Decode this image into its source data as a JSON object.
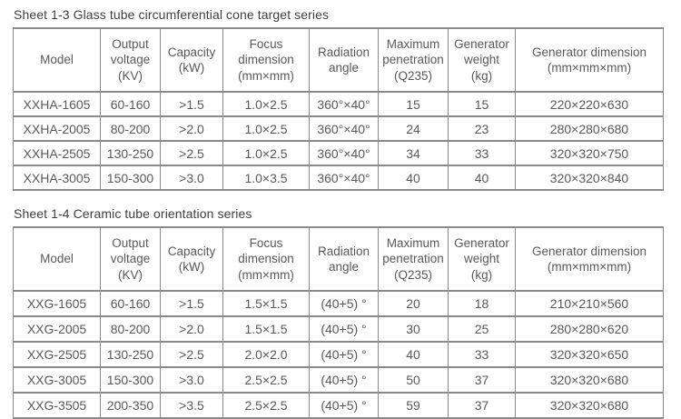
{
  "page": {
    "background": "#ffffff",
    "text_color": "#595959",
    "title_color": "#3f3f3f",
    "border_color": "#8a8a8a"
  },
  "tables": [
    {
      "title": "Sheet 1-3 Glass tube circumferential cone target series",
      "headers": [
        "Model",
        "Output\nvoltage\n(KV)",
        "Capacity\n(kW)",
        "Focus\ndimension\n(mm×mm)",
        "Radiation\nangle",
        "Maximum\npenetration\n(Q235)",
        "Generator\nweight\n(kg)",
        "Generator dimension\n(mm×mm×mm)"
      ],
      "rows": [
        [
          "XXHA-1605",
          "60-160",
          ">1.5",
          "1.0×2.5",
          "360°×40°",
          "15",
          "15",
          "220×220×630"
        ],
        [
          "XXHA-2005",
          "80-200",
          ">2.0",
          "1.0×2.5",
          "360°×40°",
          "24",
          "23",
          "280×280×680"
        ],
        [
          "XXHA-2505",
          "130-250",
          ">2.5",
          "1.0×2.5",
          "360°×40°",
          "34",
          "33",
          "320×320×750"
        ],
        [
          "XXHA-3005",
          "150-300",
          ">3.0",
          "1.0×3.5",
          "360°×40°",
          "40",
          "40",
          "320×320×840"
        ]
      ]
    },
    {
      "title": "Sheet 1-4 Ceramic tube orientation series",
      "headers": [
        "Model",
        "Output\nvoltage\n(KV)",
        "Capacity\n(kW)",
        "Focus\ndimension\n(mm×mm)",
        "Radiation\nangle",
        "Maximum\npenetration\n(Q235)",
        "Generator\nweight\n(kg)",
        "Generator dimension\n(mm×mm×mm)"
      ],
      "rows": [
        [
          "XXG-1605",
          "60-160",
          ">1.5",
          "1.5×1.5",
          "(40+5) °",
          "20",
          "18",
          "210×210×560"
        ],
        [
          "XXG-2005",
          "80-200",
          ">2.0",
          "1.5×1.5",
          "(40+5) °",
          "30",
          "25",
          "280×280×620"
        ],
        [
          "XXG-2505",
          "130-250",
          ">2.5",
          "2.0×2.0",
          "(40+5) °",
          "40",
          "33",
          "320×320×650"
        ],
        [
          "XXG-3005",
          "150-300",
          ">3.0",
          "2.5×2.5",
          "(40+5) °",
          "50",
          "37",
          "320×320×680"
        ],
        [
          "XXG-3505",
          "200-350",
          ">3.5",
          "2.5×2.5",
          "(40+5) °",
          "59",
          "37",
          "320×320×680"
        ]
      ]
    }
  ]
}
